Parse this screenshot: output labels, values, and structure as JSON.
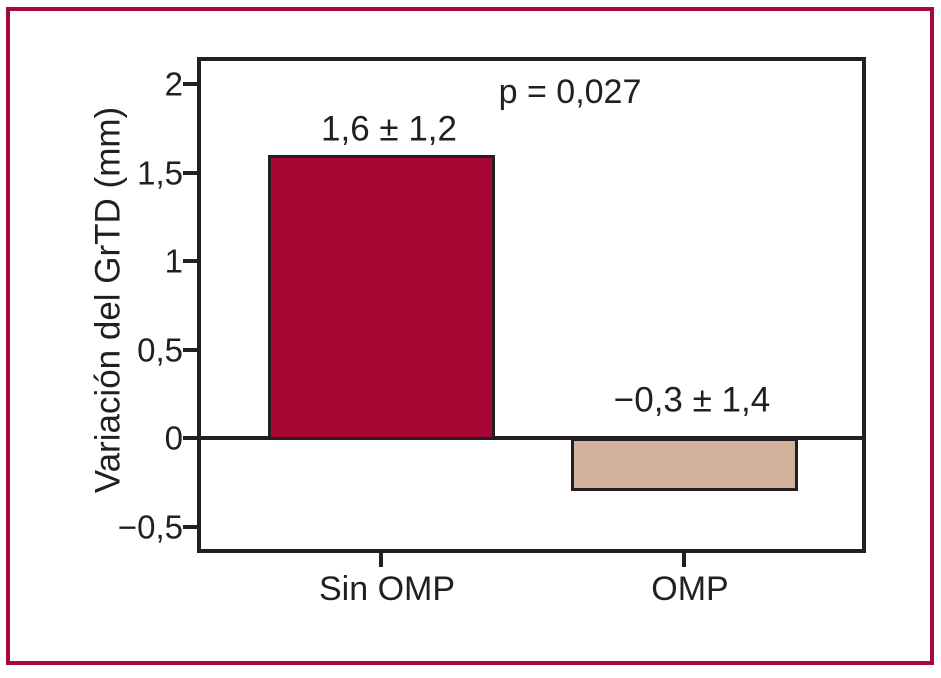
{
  "figure": {
    "frame_color": "#a50b37",
    "background_color": "#ffffff",
    "text_color": "#231f20"
  },
  "chart_data": {
    "type": "bar",
    "title": "",
    "ylabel": "Variación del GrTD (mm)",
    "xlabel": "",
    "categories": [
      "Sin OMP",
      "OMP"
    ],
    "values": [
      1.6,
      -0.3
    ],
    "value_labels": [
      "1,6 ± 1,2",
      "−0,3 ± 1,4"
    ],
    "bar_colors": [
      "#a70533",
      "#d2b19c"
    ],
    "bar_border_color": "#231f20",
    "annotation": "p = 0,027",
    "yticks": [
      {
        "value": 2,
        "label": "2"
      },
      {
        "value": 1.5,
        "label": "1,5"
      },
      {
        "value": 1,
        "label": "1"
      },
      {
        "value": 0.5,
        "label": "0,5"
      },
      {
        "value": 0,
        "label": "0"
      },
      {
        "value": -0.5,
        "label": "−0,5"
      }
    ],
    "ylim": [
      -0.65,
      2.15
    ],
    "grid": false,
    "legend_position": "none"
  }
}
